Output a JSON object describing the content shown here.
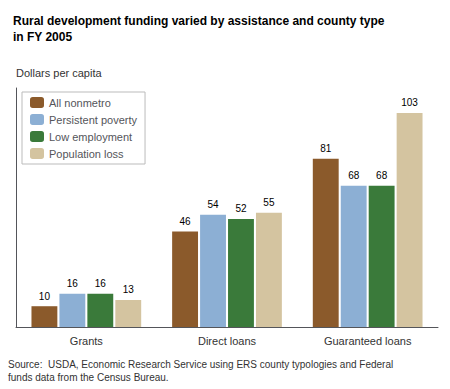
{
  "chart_data": {
    "type": "bar",
    "title": "Rural development funding varied by assistance and county type\nin FY 2005",
    "ylabel": "Dollars per capita",
    "categories": [
      "Grants",
      "Direct loans",
      "Guaranteed loans"
    ],
    "series": [
      {
        "name": "All nonmetro",
        "color": "#8B5A2B",
        "values": [
          10,
          46,
          81
        ]
      },
      {
        "name": "Persistent poverty",
        "color": "#8CAFD4",
        "values": [
          16,
          54,
          68
        ]
      },
      {
        "name": "Low employment",
        "color": "#3A7A3A",
        "values": [
          16,
          52,
          68
        ]
      },
      {
        "name": "Population loss",
        "color": "#D4C4A0",
        "values": [
          13,
          55,
          103
        ]
      }
    ],
    "ylim": [
      0,
      115
    ],
    "grid": false,
    "legend": "upper left",
    "data_labels": true,
    "tick_labels": "x",
    "source": "Source:  USDA, Economic Research Service using ERS county typologies and Federal\nfunds data from the Census Bureau."
  }
}
